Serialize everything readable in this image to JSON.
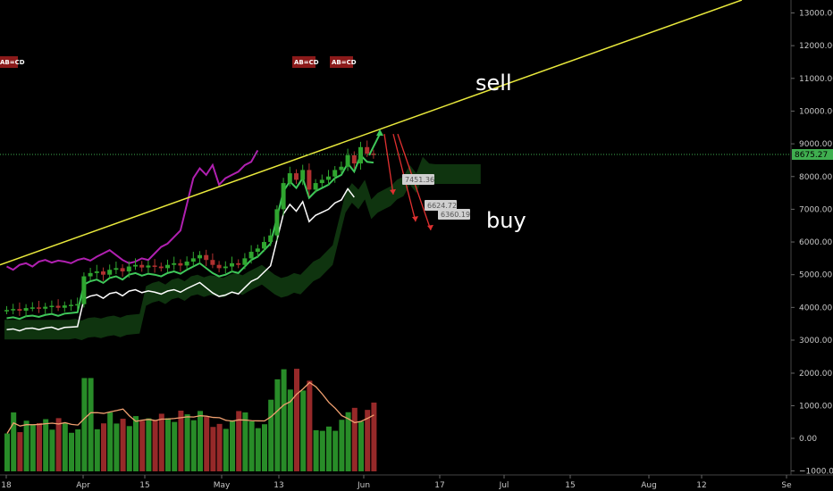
{
  "chart_data": {
    "type": "candlestick",
    "price_axis": {
      "ticks": [
        "13000.00",
        "12000.00",
        "11000.00",
        "10000.00",
        "9000.00",
        "8000.00",
        "7000.00",
        "6000.00",
        "5000.00",
        "4000.00",
        "3000.00"
      ],
      "tick_values": [
        13000,
        12000,
        11000,
        10000,
        9000,
        8000,
        7000,
        6000,
        5000,
        4000,
        3000
      ]
    },
    "volume_axis": {
      "ticks": [
        "2000.00",
        "1000.00",
        "0.00",
        "−1000.00"
      ],
      "tick_values": [
        2000,
        1000,
        0,
        -1000
      ]
    },
    "x_ticks": [
      "18",
      "Apr",
      "15",
      "May",
      "13",
      "Jun",
      "17",
      "Jul",
      "15",
      "Aug",
      "12",
      "Se"
    ],
    "current_price": "8675.27",
    "current_price_value": 8675.27,
    "pattern_labels": [
      "AB=CD",
      "AB=CD",
      "AB=CD"
    ],
    "target_labels": [
      "7451.36",
      "6624.72",
      "6360.19"
    ],
    "target_values": [
      7451.36,
      6624.72,
      6360.19
    ],
    "annotations": {
      "sell": "sell",
      "buy": "buy"
    },
    "price_series": [
      3920,
      3950,
      3900,
      3980,
      4000,
      3960,
      4020,
      4050,
      3990,
      4060,
      4080,
      4100,
      4950,
      5050,
      5100,
      5000,
      5150,
      5200,
      5100,
      5250,
      5300,
      5220,
      5280,
      5250,
      5200,
      5300,
      5350,
      5280,
      5400,
      5500,
      5600,
      5450,
      5300,
      5200,
      5250,
      5350,
      5300,
      5500,
      5700,
      5800,
      6000,
      6200,
      7000,
      7800,
      8100,
      7900,
      8200,
      7600,
      7800,
      7900,
      8000,
      8200,
      8300,
      8650,
      8400,
      8900,
      8700,
      8675
    ],
    "colors": {
      "up": "#2fa52f",
      "down": "#b03030",
      "trendline": "#e8e83c",
      "forecast_arrow": "#e03030",
      "purple_line": "#b020b0",
      "green_line": "#3fc85a",
      "white_line": "#ffffff",
      "cloud": "#1b5e1b",
      "volume_ma": "#f0a070",
      "price_tag": "#3fae4f"
    }
  }
}
